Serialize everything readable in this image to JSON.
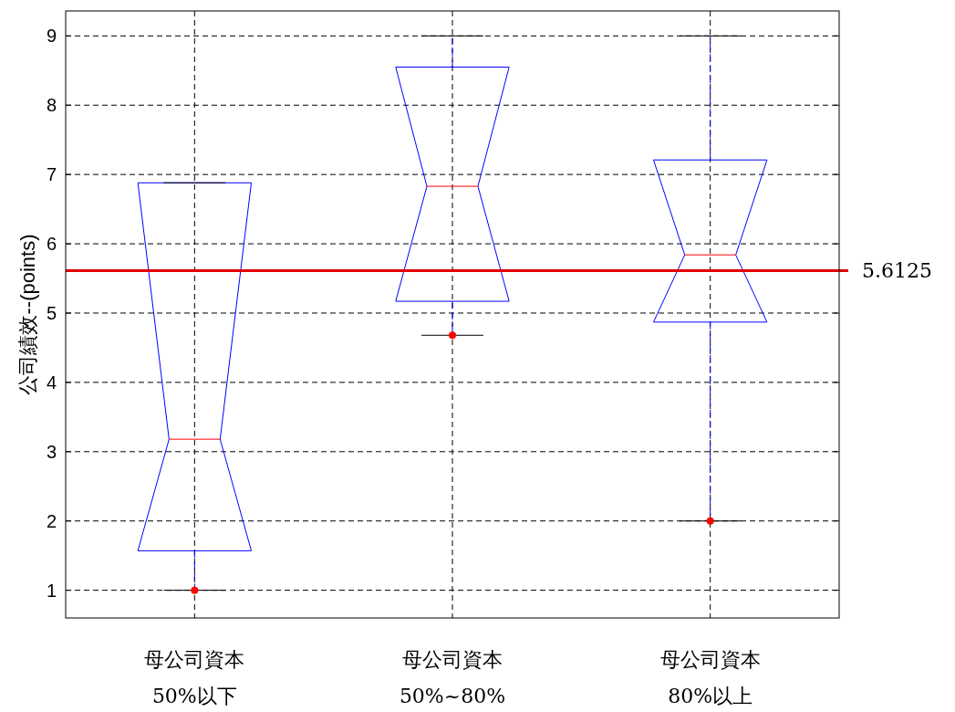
{
  "chart_data": {
    "type": "box",
    "ylabel": "公司績效--(points)",
    "categories": [
      "母公司資本\n50%以下",
      "母公司資本\n50%~80%",
      "母公司資本\n80%以上"
    ],
    "boxes": [
      {
        "low": 1,
        "q1": 1.57,
        "median": 3.18,
        "q3": 6.88,
        "high": 6.88,
        "outliers": [
          1
        ]
      },
      {
        "low": 4.68,
        "q1": 5.17,
        "median": 6.83,
        "q3": 8.55,
        "high": 9,
        "outliers": [
          4.68
        ]
      },
      {
        "low": 2,
        "q1": 4.87,
        "median": 5.84,
        "q3": 7.21,
        "high": 9,
        "outliers": [
          2
        ]
      }
    ],
    "ylim": [
      0.6,
      9.36
    ],
    "yticks": [
      1,
      2,
      3,
      4,
      5,
      6,
      7,
      8,
      9
    ],
    "grid": true,
    "ref_lines": [
      {
        "axis": "y",
        "value": 5.6125,
        "label": "5.6125",
        "color": "#e00000"
      }
    ]
  }
}
